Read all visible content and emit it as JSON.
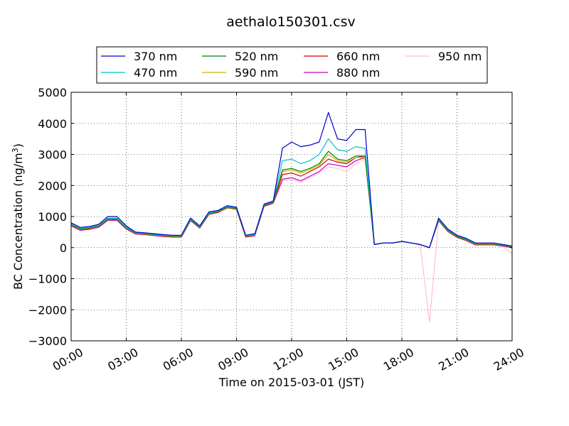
{
  "chart_data": {
    "type": "line",
    "title": "aethalo150301.csv",
    "xlabel": "Time on 2015-03-01 (JST)",
    "ylabel": "BC Concentration (ng/m",
    "ylabel_sup": "3",
    "ylabel_tail": ")",
    "xlim": [
      "00:00",
      "24:00"
    ],
    "ylim": [
      -3000,
      5000
    ],
    "xticks": [
      "00:00",
      "03:00",
      "06:00",
      "09:00",
      "12:00",
      "15:00",
      "18:00",
      "21:00",
      "24:00"
    ],
    "yticks": [
      5000,
      4000,
      3000,
      2000,
      1000,
      0,
      -1000,
      -2000,
      -3000
    ],
    "ytick_labels": [
      "5000",
      "4000",
      "3000",
      "2000",
      "1000",
      "0",
      "−1000",
      "−2000",
      "−3000"
    ],
    "grid": true,
    "legend_position": "top",
    "x_hours": [
      0,
      0.5,
      1,
      1.5,
      2,
      2.5,
      3,
      3.5,
      4,
      4.5,
      5,
      5.5,
      6,
      6.5,
      7,
      7.5,
      8,
      8.5,
      9,
      9.5,
      10,
      10.5,
      11,
      11.5,
      12,
      12.5,
      13,
      13.5,
      14,
      14.5,
      15,
      15.5,
      16,
      16.5,
      17,
      17.5,
      18,
      18.5,
      19,
      19.5,
      20,
      20.5,
      21,
      21.5,
      22,
      22.5,
      23,
      23.5,
      24
    ],
    "series": [
      {
        "name": "370 nm",
        "color": "#0000cc",
        "values": [
          800,
          650,
          680,
          750,
          1000,
          1000,
          700,
          500,
          480,
          450,
          420,
          400,
          400,
          950,
          700,
          1150,
          1200,
          1350,
          1300,
          400,
          450,
          1400,
          1500,
          3200,
          3400,
          3250,
          3300,
          3400,
          4350,
          3500,
          3450,
          3800,
          3800,
          100,
          150,
          150,
          200,
          150,
          100,
          0,
          950,
          600,
          400,
          300,
          150,
          150,
          150,
          100,
          50
        ]
      },
      {
        "name": "470 nm",
        "color": "#00bfbf",
        "values": [
          760,
          620,
          650,
          720,
          950,
          950,
          660,
          480,
          460,
          430,
          400,
          380,
          380,
          920,
          680,
          1120,
          1180,
          1320,
          1280,
          380,
          420,
          1380,
          1480,
          2800,
          2850,
          2700,
          2800,
          3000,
          3500,
          3150,
          3100,
          3250,
          3200,
          100,
          150,
          150,
          200,
          150,
          100,
          0,
          920,
          570,
          380,
          280,
          130,
          130,
          130,
          90,
          40
        ]
      },
      {
        "name": "520 nm",
        "color": "#007f00",
        "values": [
          740,
          600,
          630,
          700,
          920,
          920,
          640,
          470,
          450,
          420,
          390,
          370,
          370,
          900,
          660,
          1100,
          1160,
          1300,
          1260,
          370,
          410,
          1360,
          1460,
          2500,
          2550,
          2450,
          2550,
          2700,
          3100,
          2850,
          2800,
          2950,
          2950,
          100,
          150,
          150,
          200,
          150,
          100,
          0,
          900,
          550,
          360,
          260,
          120,
          120,
          120,
          80,
          30
        ]
      },
      {
        "name": "590 nm",
        "color": "#d4b000",
        "values": [
          730,
          590,
          620,
          690,
          910,
          910,
          630,
          460,
          440,
          410,
          380,
          360,
          360,
          890,
          650,
          1090,
          1150,
          1290,
          1250,
          360,
          400,
          1350,
          1450,
          2450,
          2500,
          2400,
          2500,
          2650,
          3000,
          2800,
          2750,
          2900,
          2900,
          100,
          150,
          150,
          200,
          150,
          100,
          0,
          890,
          540,
          350,
          250,
          110,
          110,
          110,
          70,
          20
        ]
      },
      {
        "name": "660 nm",
        "color": "#d40000",
        "values": [
          720,
          580,
          610,
          680,
          900,
          900,
          620,
          450,
          430,
          400,
          370,
          350,
          350,
          880,
          640,
          1080,
          1140,
          1280,
          1240,
          350,
          390,
          1340,
          1440,
          2350,
          2400,
          2300,
          2450,
          2600,
          2850,
          2750,
          2700,
          2900,
          2950,
          100,
          150,
          150,
          200,
          150,
          100,
          0,
          880,
          530,
          340,
          240,
          100,
          100,
          100,
          60,
          10
        ]
      },
      {
        "name": "880 nm",
        "color": "#bf00bf",
        "values": [
          700,
          560,
          590,
          660,
          880,
          880,
          600,
          440,
          420,
          390,
          360,
          340,
          340,
          870,
          630,
          1070,
          1130,
          1300,
          1230,
          340,
          380,
          1330,
          1430,
          2200,
          2250,
          2150,
          2300,
          2450,
          2700,
          2650,
          2600,
          2800,
          2900,
          100,
          150,
          150,
          200,
          150,
          100,
          0,
          870,
          520,
          330,
          230,
          90,
          90,
          90,
          50,
          0
        ]
      },
      {
        "name": "950 nm",
        "color": "#ffc0cb",
        "values": [
          690,
          550,
          580,
          650,
          870,
          870,
          590,
          430,
          410,
          380,
          350,
          330,
          330,
          860,
          620,
          1060,
          1120,
          1280,
          1220,
          330,
          370,
          1320,
          1420,
          2150,
          2200,
          2100,
          2250,
          2400,
          2600,
          2550,
          2450,
          2700,
          2850,
          100,
          150,
          150,
          200,
          150,
          100,
          -2400,
          860,
          510,
          320,
          220,
          80,
          80,
          80,
          40,
          -200
        ]
      }
    ]
  }
}
